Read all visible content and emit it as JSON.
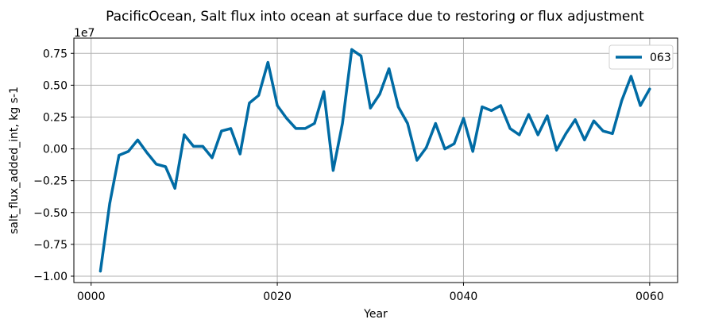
{
  "chart_data": {
    "type": "line",
    "title": "PacificOcean, Salt flux into ocean at surface due to restoring or flux adjustment",
    "xlabel": "Year",
    "ylabel": "salt_flux_added_int, kg s-1",
    "y_offset_label": "1e7",
    "x_ticks": [
      {
        "value": 0,
        "label": "0000"
      },
      {
        "value": 20,
        "label": "0020"
      },
      {
        "value": 40,
        "label": "0040"
      },
      {
        "value": 60,
        "label": "0060"
      }
    ],
    "y_ticks": [
      {
        "value": -1.0,
        "label": "−1.00"
      },
      {
        "value": -0.75,
        "label": "−0.75"
      },
      {
        "value": -0.5,
        "label": "−0.50"
      },
      {
        "value": -0.25,
        "label": "−0.25"
      },
      {
        "value": 0.0,
        "label": "0.00"
      },
      {
        "value": 0.25,
        "label": "0.25"
      },
      {
        "value": 0.5,
        "label": "0.50"
      },
      {
        "value": 0.75,
        "label": "0.75"
      }
    ],
    "xlim": [
      -1.85,
      63
    ],
    "ylim": [
      -1.05,
      0.87
    ],
    "grid": true,
    "legend_position": "top-right",
    "series": [
      {
        "name": "063",
        "color": "#006ba4",
        "x": [
          1,
          2,
          3,
          4,
          5,
          6,
          7,
          8,
          9,
          10,
          11,
          12,
          13,
          14,
          15,
          16,
          17,
          18,
          19,
          20,
          21,
          22,
          23,
          24,
          25,
          26,
          27,
          28,
          29,
          30,
          31,
          32,
          33,
          34,
          35,
          36,
          37,
          38,
          39,
          40,
          41,
          42,
          43,
          44,
          45,
          46,
          47,
          48,
          49,
          50,
          51,
          52,
          53,
          54,
          55,
          56,
          57,
          58,
          59,
          60
        ],
        "values": [
          -0.96,
          -0.43,
          -0.05,
          -0.02,
          0.07,
          -0.03,
          -0.12,
          -0.14,
          -0.31,
          0.11,
          0.02,
          0.02,
          -0.07,
          0.14,
          0.16,
          -0.04,
          0.36,
          0.42,
          0.68,
          0.34,
          0.24,
          0.16,
          0.16,
          0.2,
          0.45,
          -0.17,
          0.2,
          0.78,
          0.73,
          0.32,
          0.43,
          0.63,
          0.33,
          0.2,
          -0.09,
          0.01,
          0.2,
          0.0,
          0.04,
          0.24,
          -0.02,
          0.33,
          0.3,
          0.34,
          0.16,
          0.11,
          0.27,
          0.11,
          0.26,
          -0.01,
          0.12,
          0.23,
          0.07,
          0.22,
          0.14,
          0.12,
          0.38,
          0.57,
          0.34,
          0.47
        ]
      }
    ]
  }
}
